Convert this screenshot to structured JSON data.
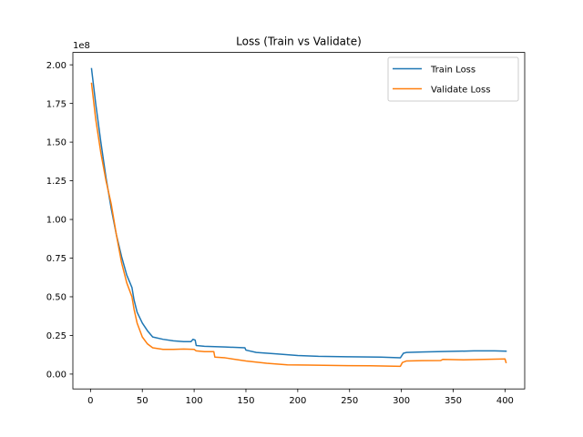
{
  "chart_data": {
    "type": "line",
    "title": "Loss (Train vs Validate)",
    "xlabel": "",
    "ylabel": "",
    "y_offset_label": "1e8",
    "xlim": [
      -17,
      419
    ],
    "ylim": [
      -9600000,
      208000000
    ],
    "x_ticks": [
      0,
      50,
      100,
      150,
      200,
      250,
      300,
      350,
      400
    ],
    "x_tick_labels": [
      "0",
      "50",
      "100",
      "150",
      "200",
      "250",
      "300",
      "350",
      "400"
    ],
    "y_ticks": [
      0,
      25000000,
      50000000,
      75000000,
      100000000,
      125000000,
      150000000,
      175000000,
      200000000
    ],
    "y_tick_labels": [
      "0.00",
      "0.25",
      "0.50",
      "0.75",
      "1.00",
      "1.25",
      "1.50",
      "1.75",
      "2.00"
    ],
    "grid": false,
    "legend": {
      "placement": "top-right"
    },
    "series": [
      {
        "name": "Train Loss",
        "color": "#1f77b4",
        "points": [
          [
            1,
            197500000
          ],
          [
            5,
            175000000
          ],
          [
            10,
            150000000
          ],
          [
            15,
            127000000
          ],
          [
            20,
            107000000
          ],
          [
            25,
            90000000
          ],
          [
            30,
            76000000
          ],
          [
            35,
            64000000
          ],
          [
            40,
            56000000
          ],
          [
            42,
            48000000
          ],
          [
            45,
            40000000
          ],
          [
            50,
            33000000
          ],
          [
            55,
            28000000
          ],
          [
            60,
            24000000
          ],
          [
            70,
            22500000
          ],
          [
            80,
            21500000
          ],
          [
            90,
            21000000
          ],
          [
            97,
            21000000
          ],
          [
            99,
            22500000
          ],
          [
            101,
            22000000
          ],
          [
            102,
            18500000
          ],
          [
            110,
            18000000
          ],
          [
            130,
            17500000
          ],
          [
            149,
            17000000
          ],
          [
            150,
            15500000
          ],
          [
            160,
            14000000
          ],
          [
            180,
            13000000
          ],
          [
            200,
            12000000
          ],
          [
            220,
            11500000
          ],
          [
            250,
            11200000
          ],
          [
            280,
            11000000
          ],
          [
            299,
            10500000
          ],
          [
            302,
            13500000
          ],
          [
            305,
            14000000
          ],
          [
            320,
            14300000
          ],
          [
            335,
            14500000
          ],
          [
            350,
            14700000
          ],
          [
            370,
            15000000
          ],
          [
            390,
            15000000
          ],
          [
            401,
            14800000
          ]
        ]
      },
      {
        "name": "Validate Loss",
        "color": "#ff7f0e",
        "points": [
          [
            1,
            188000000
          ],
          [
            5,
            165000000
          ],
          [
            10,
            143000000
          ],
          [
            15,
            125000000
          ],
          [
            20,
            110000000
          ],
          [
            25,
            90000000
          ],
          [
            30,
            72000000
          ],
          [
            35,
            59000000
          ],
          [
            40,
            50000000
          ],
          [
            42,
            42000000
          ],
          [
            45,
            33000000
          ],
          [
            50,
            24000000
          ],
          [
            55,
            19500000
          ],
          [
            60,
            17000000
          ],
          [
            70,
            16000000
          ],
          [
            80,
            16000000
          ],
          [
            90,
            16200000
          ],
          [
            100,
            16000000
          ],
          [
            102,
            15000000
          ],
          [
            110,
            14500000
          ],
          [
            119,
            14500000
          ],
          [
            120,
            11000000
          ],
          [
            130,
            10500000
          ],
          [
            150,
            8500000
          ],
          [
            170,
            7000000
          ],
          [
            190,
            6000000
          ],
          [
            210,
            5800000
          ],
          [
            240,
            5500000
          ],
          [
            270,
            5400000
          ],
          [
            299,
            5000000
          ],
          [
            301,
            7500000
          ],
          [
            305,
            8500000
          ],
          [
            320,
            8700000
          ],
          [
            338,
            8800000
          ],
          [
            340,
            9500000
          ],
          [
            360,
            9200000
          ],
          [
            380,
            9500000
          ],
          [
            400,
            9800000
          ],
          [
            401,
            7500000
          ]
        ]
      }
    ]
  }
}
